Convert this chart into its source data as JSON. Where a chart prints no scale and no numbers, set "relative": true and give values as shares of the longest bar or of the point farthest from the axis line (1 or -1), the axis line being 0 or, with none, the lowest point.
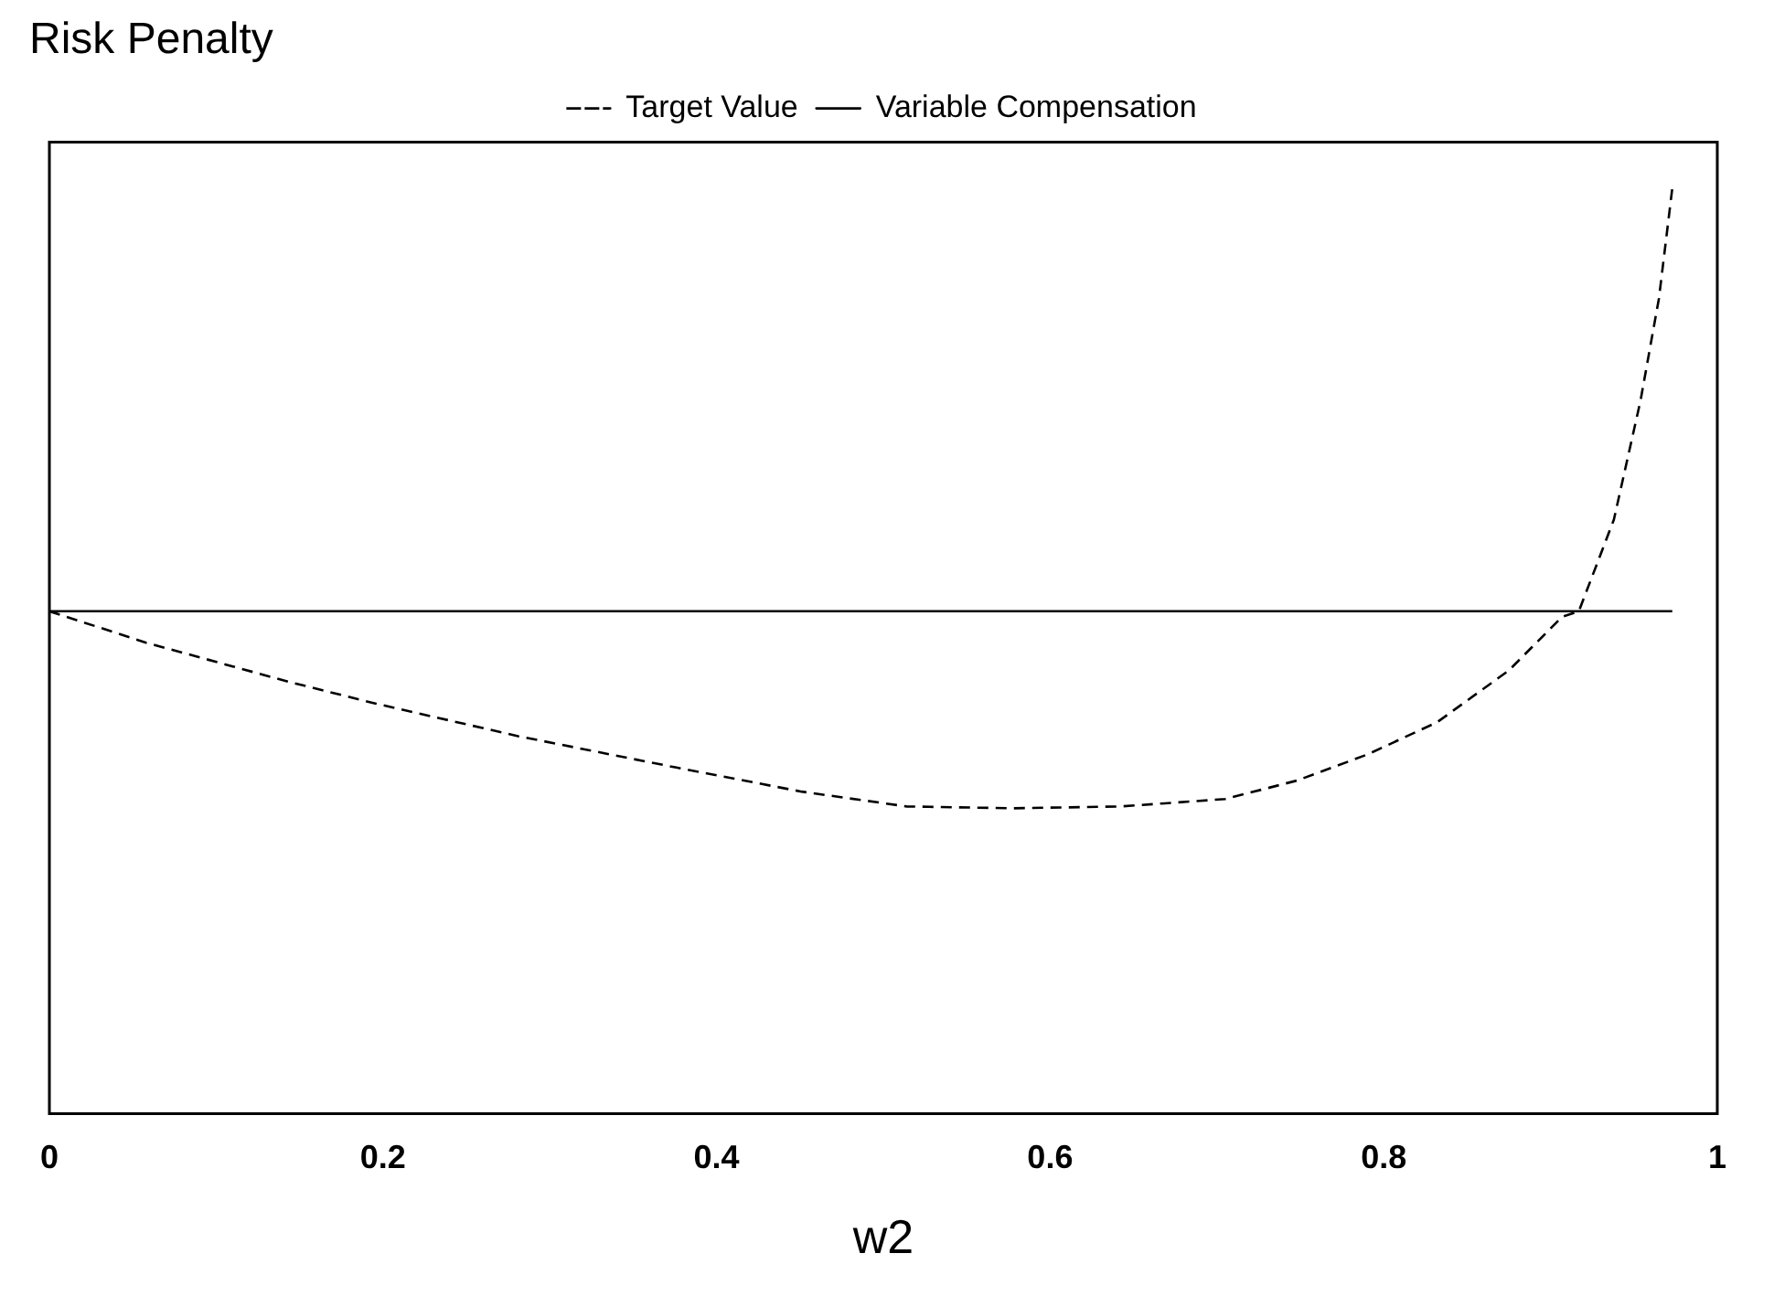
{
  "chart_data": {
    "type": "line",
    "title": "Risk Penalty",
    "xlabel": "w2",
    "relative": true,
    "xlim": [
      0,
      1
    ],
    "xticks": [
      0,
      0.2,
      0.4,
      0.6,
      0.8,
      1
    ],
    "grid": false,
    "legend": "top",
    "marker": "none",
    "series": [
      {
        "name": "Target Value",
        "color": "#000000",
        "line_style": "dashed",
        "x": [
          0,
          0.058,
          0.143,
          0.196,
          0.281,
          0.376,
          0.451,
          0.514,
          0.578,
          0.642,
          0.705,
          0.748,
          0.79,
          0.832,
          0.875,
          0.907,
          0.917,
          0.938,
          0.954,
          0.965,
          0.973
        ],
        "values": [
          0.543,
          0.509,
          0.467,
          0.443,
          0.408,
          0.374,
          0.348,
          0.332,
          0.33,
          0.332,
          0.34,
          0.36,
          0.388,
          0.423,
          0.479,
          0.537,
          0.543,
          0.642,
          0.771,
          0.881,
          1
        ]
      },
      {
        "name": "Variable Compensation",
        "color": "#000000",
        "line_style": "solid",
        "x": [
          0,
          0.973
        ],
        "values": [
          0.543,
          0.543
        ]
      }
    ]
  }
}
